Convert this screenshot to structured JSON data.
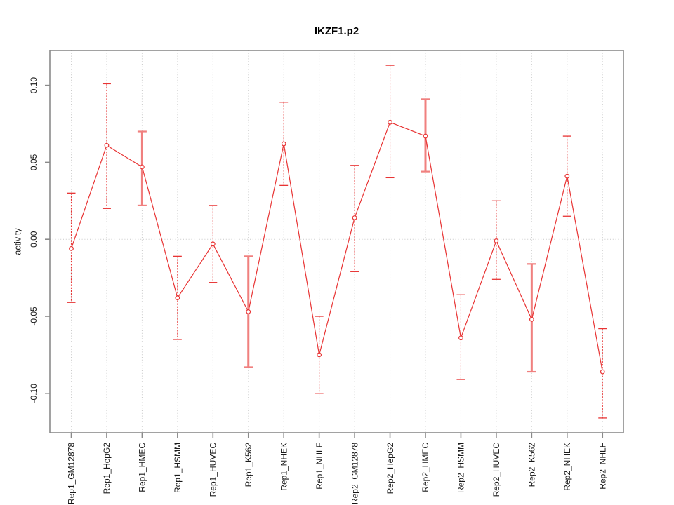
{
  "chart_data": {
    "type": "line",
    "subtype": "points-with-error-bars",
    "title": "IKZF1.p2",
    "xlabel": "",
    "ylabel": "activity",
    "categories": [
      "Rep1_GM12878",
      "Rep1_HepG2",
      "Rep1_HMEC",
      "Rep1_HSMM",
      "Rep1_HUVEC",
      "Rep1_K562",
      "Rep1_NHEK",
      "Rep1_NHLF",
      "Rep2_GM12878",
      "Rep2_HepG2",
      "Rep2_HMEC",
      "Rep2_HSMM",
      "Rep2_HUVEC",
      "Rep2_K562",
      "Rep2_NHEK",
      "Rep2_NHLF"
    ],
    "values": [
      -0.006,
      0.061,
      0.047,
      -0.038,
      -0.003,
      -0.047,
      0.062,
      -0.075,
      0.014,
      0.076,
      0.067,
      -0.064,
      -0.001,
      -0.052,
      0.041,
      -0.086
    ],
    "error_high": [
      0.03,
      0.101,
      0.07,
      -0.011,
      0.022,
      -0.011,
      0.089,
      -0.05,
      0.048,
      0.113,
      0.091,
      -0.036,
      0.025,
      -0.016,
      0.067,
      -0.058
    ],
    "error_low": [
      -0.041,
      0.02,
      0.022,
      -0.065,
      -0.028,
      -0.083,
      0.035,
      -0.1,
      -0.021,
      0.04,
      0.044,
      -0.091,
      -0.026,
      -0.086,
      0.015,
      -0.116
    ],
    "thick_error_bars": [
      false,
      false,
      true,
      false,
      false,
      true,
      false,
      false,
      false,
      false,
      true,
      false,
      false,
      true,
      false,
      false
    ],
    "ylim": [
      -0.1256,
      0.1226
    ],
    "yticks": [
      0.1,
      0.05,
      0.0,
      -0.05,
      -0.1
    ],
    "ytick_labels": [
      "0.10",
      "0.05",
      "0.00",
      "-0.05",
      "-0.10"
    ],
    "grid": {
      "vertical_dotted_per_category": true,
      "horizontal_dotted_at_zero": true
    },
    "legend": "none",
    "marker": "open-circle",
    "colors": {
      "series": "#e83434",
      "error_bar_thin": "#e83434",
      "error_bar_thick": "#f0807f",
      "grid_line": "#c9c9c9",
      "axis_box": "#8a8a8a",
      "tick_label": "#1a1a1a",
      "title": "#000000",
      "background": "#ffffff"
    }
  }
}
